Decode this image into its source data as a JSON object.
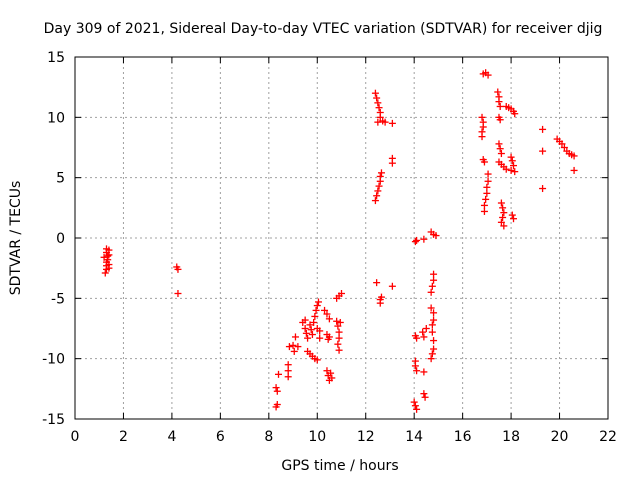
{
  "chart_data": {
    "type": "scatter",
    "title": "Day 309 of 2021, Sidereal Day-to-day VTEC variation (SDTVAR) for receiver djig",
    "xlabel": "GPS time / hours",
    "ylabel": "SDTVAR / TECUs",
    "xlim": [
      0,
      22
    ],
    "ylim": [
      -15,
      15
    ],
    "xticks": [
      0,
      2,
      4,
      6,
      8,
      10,
      12,
      14,
      16,
      18,
      20,
      22
    ],
    "yticks": [
      -15,
      -10,
      -5,
      0,
      5,
      10,
      15
    ],
    "grid": true,
    "marker": "+",
    "color": "#ff0000",
    "series": [
      {
        "name": "SDTVAR",
        "points": [
          [
            1.3,
            -0.9
          ],
          [
            1.3,
            -1.2
          ],
          [
            1.35,
            -1.5
          ],
          [
            1.35,
            -1.8
          ],
          [
            1.3,
            -2.0
          ],
          [
            1.3,
            -2.3
          ],
          [
            1.3,
            -2.6
          ],
          [
            1.25,
            -2.9
          ],
          [
            1.4,
            -1.0
          ],
          [
            1.4,
            -1.4
          ],
          [
            1.4,
            -2.2
          ],
          [
            1.4,
            -2.5
          ],
          [
            1.2,
            -1.6
          ],
          [
            4.2,
            -2.4
          ],
          [
            4.25,
            -2.6
          ],
          [
            4.25,
            -4.6
          ],
          [
            8.3,
            -12.4
          ],
          [
            8.35,
            -12.7
          ],
          [
            8.3,
            -14.0
          ],
          [
            8.35,
            -13.8
          ],
          [
            8.4,
            -11.3
          ],
          [
            8.8,
            -10.5
          ],
          [
            8.8,
            -11.0
          ],
          [
            8.8,
            -11.5
          ],
          [
            8.85,
            -9.0
          ],
          [
            9.0,
            -8.9
          ],
          [
            9.05,
            -9.4
          ],
          [
            9.1,
            -8.2
          ],
          [
            9.2,
            -9.0
          ],
          [
            9.4,
            -7.0
          ],
          [
            9.5,
            -6.8
          ],
          [
            9.5,
            -7.5
          ],
          [
            9.55,
            -7.9
          ],
          [
            9.6,
            -8.3
          ],
          [
            9.6,
            -9.4
          ],
          [
            9.7,
            -9.6
          ],
          [
            9.8,
            -9.8
          ],
          [
            9.9,
            -10.0
          ],
          [
            10.0,
            -10.1
          ],
          [
            9.7,
            -7.2
          ],
          [
            9.75,
            -7.6
          ],
          [
            9.8,
            -8.0
          ],
          [
            9.85,
            -7.0
          ],
          [
            9.9,
            -6.5
          ],
          [
            9.95,
            -6.0
          ],
          [
            10.0,
            -5.6
          ],
          [
            10.05,
            -5.3
          ],
          [
            10.0,
            -7.5
          ],
          [
            10.1,
            -7.7
          ],
          [
            10.1,
            -8.3
          ],
          [
            10.3,
            -6.0
          ],
          [
            10.4,
            -6.3
          ],
          [
            10.5,
            -6.7
          ],
          [
            10.4,
            -8.0
          ],
          [
            10.5,
            -8.2
          ],
          [
            10.45,
            -8.4
          ],
          [
            10.4,
            -11.0
          ],
          [
            10.45,
            -11.4
          ],
          [
            10.5,
            -11.8
          ],
          [
            10.55,
            -11.2
          ],
          [
            10.6,
            -11.6
          ],
          [
            10.8,
            -6.9
          ],
          [
            10.85,
            -7.3
          ],
          [
            10.9,
            -7.8
          ],
          [
            10.9,
            -8.3
          ],
          [
            10.85,
            -8.8
          ],
          [
            10.9,
            -9.3
          ],
          [
            10.95,
            -7.0
          ],
          [
            10.8,
            -5.0
          ],
          [
            10.9,
            -4.8
          ],
          [
            11.0,
            -4.6
          ],
          [
            12.4,
            12.0
          ],
          [
            12.45,
            11.6
          ],
          [
            12.5,
            11.2
          ],
          [
            12.55,
            10.8
          ],
          [
            12.6,
            10.4
          ],
          [
            12.6,
            10.0
          ],
          [
            12.7,
            9.7
          ],
          [
            12.5,
            9.6
          ],
          [
            12.8,
            9.6
          ],
          [
            13.1,
            9.5
          ],
          [
            12.4,
            3.1
          ],
          [
            12.45,
            3.5
          ],
          [
            12.5,
            3.9
          ],
          [
            12.55,
            4.3
          ],
          [
            12.6,
            4.7
          ],
          [
            12.6,
            5.1
          ],
          [
            12.65,
            5.4
          ],
          [
            12.45,
            -3.7
          ],
          [
            12.6,
            -5.1
          ],
          [
            12.6,
            -5.4
          ],
          [
            12.65,
            -4.9
          ],
          [
            13.1,
            -4.0
          ],
          [
            13.1,
            6.6
          ],
          [
            13.1,
            6.2
          ],
          [
            14.05,
            -0.3
          ],
          [
            14.1,
            -0.2
          ],
          [
            14.05,
            -8.1
          ],
          [
            14.1,
            -8.3
          ],
          [
            14.05,
            -10.2
          ],
          [
            14.05,
            -10.6
          ],
          [
            14.1,
            -11.0
          ],
          [
            14.0,
            -13.6
          ],
          [
            14.05,
            -13.9
          ],
          [
            14.1,
            -14.2
          ],
          [
            14.4,
            -0.1
          ],
          [
            14.4,
            -11.1
          ],
          [
            14.4,
            -12.9
          ],
          [
            14.45,
            -13.2
          ],
          [
            14.35,
            -7.8
          ],
          [
            14.5,
            -7.5
          ],
          [
            14.4,
            -8.2
          ],
          [
            14.7,
            0.5
          ],
          [
            14.8,
            0.3
          ],
          [
            14.9,
            0.2
          ],
          [
            14.8,
            -3.0
          ],
          [
            14.8,
            -3.5
          ],
          [
            14.75,
            -4.0
          ],
          [
            14.7,
            -4.5
          ],
          [
            14.7,
            -5.8
          ],
          [
            14.8,
            -6.2
          ],
          [
            14.8,
            -6.8
          ],
          [
            14.75,
            -7.2
          ],
          [
            14.75,
            -7.8
          ],
          [
            14.8,
            -8.5
          ],
          [
            14.8,
            -9.2
          ],
          [
            14.75,
            -9.6
          ],
          [
            14.7,
            -10.0
          ],
          [
            16.85,
            13.6
          ],
          [
            16.95,
            13.7
          ],
          [
            17.05,
            13.5
          ],
          [
            16.8,
            10.0
          ],
          [
            16.85,
            9.6
          ],
          [
            16.85,
            9.2
          ],
          [
            16.8,
            8.8
          ],
          [
            16.8,
            8.4
          ],
          [
            16.85,
            6.5
          ],
          [
            16.9,
            6.3
          ],
          [
            16.9,
            2.2
          ],
          [
            16.9,
            2.7
          ],
          [
            16.95,
            3.2
          ],
          [
            17.0,
            3.7
          ],
          [
            17.0,
            4.2
          ],
          [
            17.05,
            4.7
          ],
          [
            17.05,
            5.3
          ],
          [
            17.45,
            12.1
          ],
          [
            17.5,
            11.7
          ],
          [
            17.5,
            11.3
          ],
          [
            17.55,
            10.9
          ],
          [
            17.5,
            10.0
          ],
          [
            17.55,
            9.8
          ],
          [
            17.5,
            7.8
          ],
          [
            17.55,
            7.4
          ],
          [
            17.6,
            7.0
          ],
          [
            17.5,
            6.3
          ],
          [
            17.6,
            6.1
          ],
          [
            17.7,
            5.9
          ],
          [
            17.8,
            5.7
          ],
          [
            17.6,
            2.9
          ],
          [
            17.65,
            2.5
          ],
          [
            17.7,
            2.1
          ],
          [
            17.65,
            1.7
          ],
          [
            17.6,
            1.3
          ],
          [
            17.7,
            1.0
          ],
          [
            17.8,
            10.9
          ],
          [
            17.9,
            10.8
          ],
          [
            18.0,
            10.7
          ],
          [
            18.1,
            10.5
          ],
          [
            18.15,
            10.3
          ],
          [
            18.0,
            6.7
          ],
          [
            18.05,
            6.4
          ],
          [
            18.1,
            6.0
          ],
          [
            18.0,
            5.6
          ],
          [
            18.15,
            5.5
          ],
          [
            18.05,
            1.9
          ],
          [
            18.1,
            1.6
          ],
          [
            19.3,
            9.0
          ],
          [
            19.3,
            7.2
          ],
          [
            19.3,
            4.1
          ],
          [
            19.9,
            8.2
          ],
          [
            20.0,
            8.0
          ],
          [
            20.1,
            7.8
          ],
          [
            20.2,
            7.5
          ],
          [
            20.3,
            7.2
          ],
          [
            20.4,
            7.0
          ],
          [
            20.5,
            6.9
          ],
          [
            20.6,
            6.8
          ],
          [
            20.6,
            5.6
          ]
        ]
      }
    ]
  }
}
